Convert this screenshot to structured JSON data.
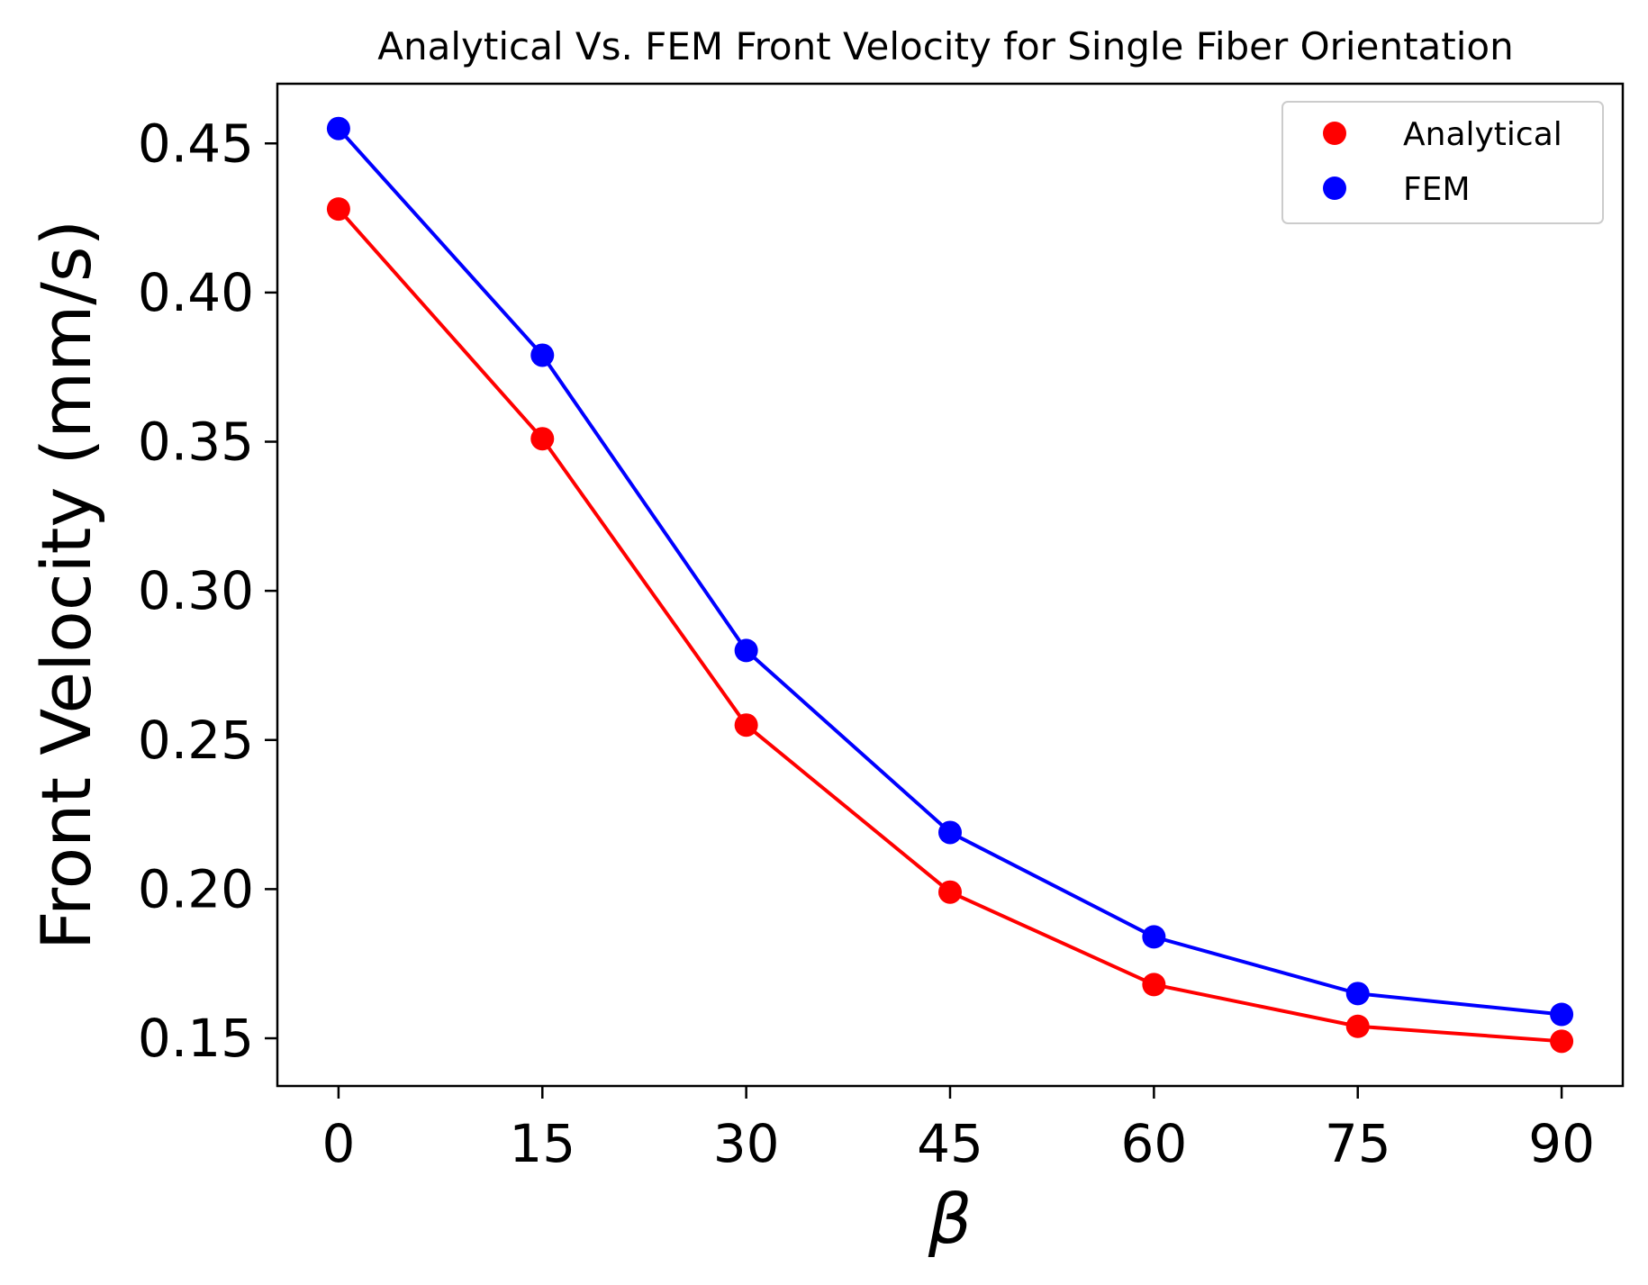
{
  "chart_data": {
    "type": "line",
    "title": "Analytical Vs. FEM Front Velocity for Single Fiber Orientation",
    "xlabel": "β",
    "ylabel": "Front Velocity (mm/s)",
    "x": [
      0,
      15,
      30,
      45,
      60,
      75,
      90
    ],
    "x_ticks": [
      "0",
      "15",
      "30",
      "45",
      "60",
      "75",
      "90"
    ],
    "y_ticks": [
      "0.15",
      "0.20",
      "0.25",
      "0.30",
      "0.35",
      "0.40",
      "0.45"
    ],
    "xlim": [
      -4.5,
      94.5
    ],
    "ylim": [
      0.134,
      0.47
    ],
    "series": [
      {
        "name": "Analytical",
        "color": "#ff0000",
        "values": [
          0.428,
          0.351,
          0.255,
          0.199,
          0.168,
          0.154,
          0.149
        ]
      },
      {
        "name": "FEM",
        "color": "#0000ff",
        "values": [
          0.455,
          0.379,
          0.28,
          0.219,
          0.184,
          0.165,
          0.158
        ]
      }
    ],
    "legend": {
      "position": "top-right"
    },
    "grid": false
  }
}
